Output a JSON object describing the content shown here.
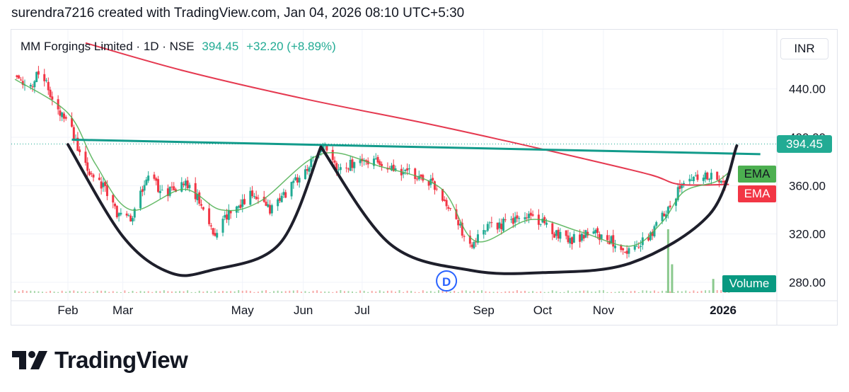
{
  "header": {
    "caption": "surendra7216 created with TradingView.com, Jan 04, 2026 08:10 UTC+5:30"
  },
  "legend": {
    "symbol": "MM Forgings Limited · 1D · NSE",
    "price": "394.45",
    "change": "+32.20 (+8.89%)"
  },
  "currency": "INR",
  "price_tag": "394.45",
  "ema_labels": [
    "EMA",
    "EMA"
  ],
  "volume_label": "Volume",
  "brand": "TradingView",
  "colors": {
    "up": "#22ab94",
    "down": "#f23645",
    "ema_fast": "#4caf50",
    "ema_slow": "#e53950",
    "trendline": "#129b8b",
    "pattern": "#1e1f2b",
    "marker": "#2962ff"
  },
  "chart_data": {
    "type": "candlestick",
    "symbol": "MM Forgings Limited",
    "interval": "1D",
    "exchange": "NSE",
    "last_price": 394.45,
    "change": 32.2,
    "change_pct": 8.89,
    "y_ticks": [
      280,
      320,
      360,
      400,
      440
    ],
    "y_tick_labels": [
      "280.00",
      "320.00",
      "360.00",
      "400.00",
      "440.00"
    ],
    "ylim": [
      270,
      470
    ],
    "x_tick_labels": [
      "Feb",
      "Mar",
      "May",
      "Jun",
      "Jul",
      "Sep",
      "Oct",
      "Nov",
      "2026"
    ],
    "x_tick_dates": [
      "2025-02-01",
      "2025-03-01",
      "2025-05-01",
      "2025-06-01",
      "2025-07-01",
      "2025-09-01",
      "2025-10-01",
      "2025-11-01",
      "2026-01-01"
    ],
    "xlim": [
      "2025-01-05",
      "2026-01-22"
    ],
    "price_path": [
      [
        "2025-01-05",
        450
      ],
      [
        "2025-01-12",
        440
      ],
      [
        "2025-01-18",
        458
      ],
      [
        "2025-01-25",
        425
      ],
      [
        "2025-02-02",
        412
      ],
      [
        "2025-02-08",
        378
      ],
      [
        "2025-02-18",
        362
      ],
      [
        "2025-02-26",
        338
      ],
      [
        "2025-03-05",
        330
      ],
      [
        "2025-03-14",
        370
      ],
      [
        "2025-03-22",
        352
      ],
      [
        "2025-04-02",
        362
      ],
      [
        "2025-04-10",
        345
      ],
      [
        "2025-04-16",
        320
      ],
      [
        "2025-04-25",
        340
      ],
      [
        "2025-05-05",
        352
      ],
      [
        "2025-05-15",
        340
      ],
      [
        "2025-05-25",
        358
      ],
      [
        "2025-06-04",
        376
      ],
      [
        "2025-06-11",
        394
      ],
      [
        "2025-06-18",
        374
      ],
      [
        "2025-06-28",
        378
      ],
      [
        "2025-07-06",
        382
      ],
      [
        "2025-07-16",
        372
      ],
      [
        "2025-07-26",
        370
      ],
      [
        "2025-08-06",
        362
      ],
      [
        "2025-08-16",
        340
      ],
      [
        "2025-08-24",
        308
      ],
      [
        "2025-09-04",
        326
      ],
      [
        "2025-09-14",
        330
      ],
      [
        "2025-09-25",
        336
      ],
      [
        "2025-10-06",
        322
      ],
      [
        "2025-10-16",
        316
      ],
      [
        "2025-10-26",
        320
      ],
      [
        "2025-11-06",
        314
      ],
      [
        "2025-11-14",
        306
      ],
      [
        "2025-11-24",
        316
      ],
      [
        "2025-12-02",
        338
      ],
      [
        "2025-12-10",
        358
      ],
      [
        "2025-12-20",
        370
      ],
      [
        "2025-12-28",
        366
      ],
      [
        "2026-01-02",
        360
      ],
      [
        "2026-01-04",
        394.45
      ]
    ],
    "ema_fast_path": [
      [
        "2025-01-05",
        448
      ],
      [
        "2025-02-01",
        420
      ],
      [
        "2025-02-15",
        378
      ],
      [
        "2025-03-05",
        340
      ],
      [
        "2025-04-01",
        357
      ],
      [
        "2025-04-20",
        340
      ],
      [
        "2025-05-10",
        347
      ],
      [
        "2025-06-10",
        386
      ],
      [
        "2025-07-10",
        376
      ],
      [
        "2025-08-10",
        358
      ],
      [
        "2025-08-28",
        314
      ],
      [
        "2025-09-25",
        332
      ],
      [
        "2025-10-20",
        322
      ],
      [
        "2025-11-15",
        310
      ],
      [
        "2025-12-01",
        330
      ],
      [
        "2025-12-12",
        355
      ],
      [
        "2025-12-28",
        363
      ],
      [
        "2026-01-04",
        371
      ]
    ],
    "ema_slow_path": [
      [
        "2025-02-10",
        478
      ],
      [
        "2025-04-01",
        455
      ],
      [
        "2025-06-01",
        432
      ],
      [
        "2025-08-01",
        412
      ],
      [
        "2025-09-15",
        396
      ],
      [
        "2025-10-20",
        383
      ],
      [
        "2025-11-25",
        369
      ],
      [
        "2025-12-10",
        361
      ],
      [
        "2026-01-04",
        361
      ]
    ],
    "trendline": [
      [
        "2025-02-03",
        398
      ],
      [
        "2026-01-20",
        386
      ]
    ],
    "cup_left": [
      [
        "2025-02-01",
        394
      ],
      [
        "2025-03-01",
        318
      ],
      [
        "2025-03-25",
        288
      ],
      [
        "2025-04-15",
        290
      ],
      [
        "2025-05-20",
        312
      ],
      [
        "2025-06-10",
        392
      ]
    ],
    "cup_right": [
      [
        "2025-06-10",
        392
      ],
      [
        "2025-07-15",
        312
      ],
      [
        "2025-08-25",
        290
      ],
      [
        "2025-10-01",
        288
      ],
      [
        "2025-11-15",
        296
      ],
      [
        "2025-12-25",
        336
      ],
      [
        "2026-01-08",
        393
      ]
    ],
    "dividend_marker": {
      "date": "2025-08-13",
      "label": "D"
    },
    "volume_spike": [
      [
        "2025-12-04",
        1.0
      ],
      [
        "2025-12-06",
        0.45
      ],
      [
        "2025-12-27",
        0.22
      ]
    ]
  }
}
